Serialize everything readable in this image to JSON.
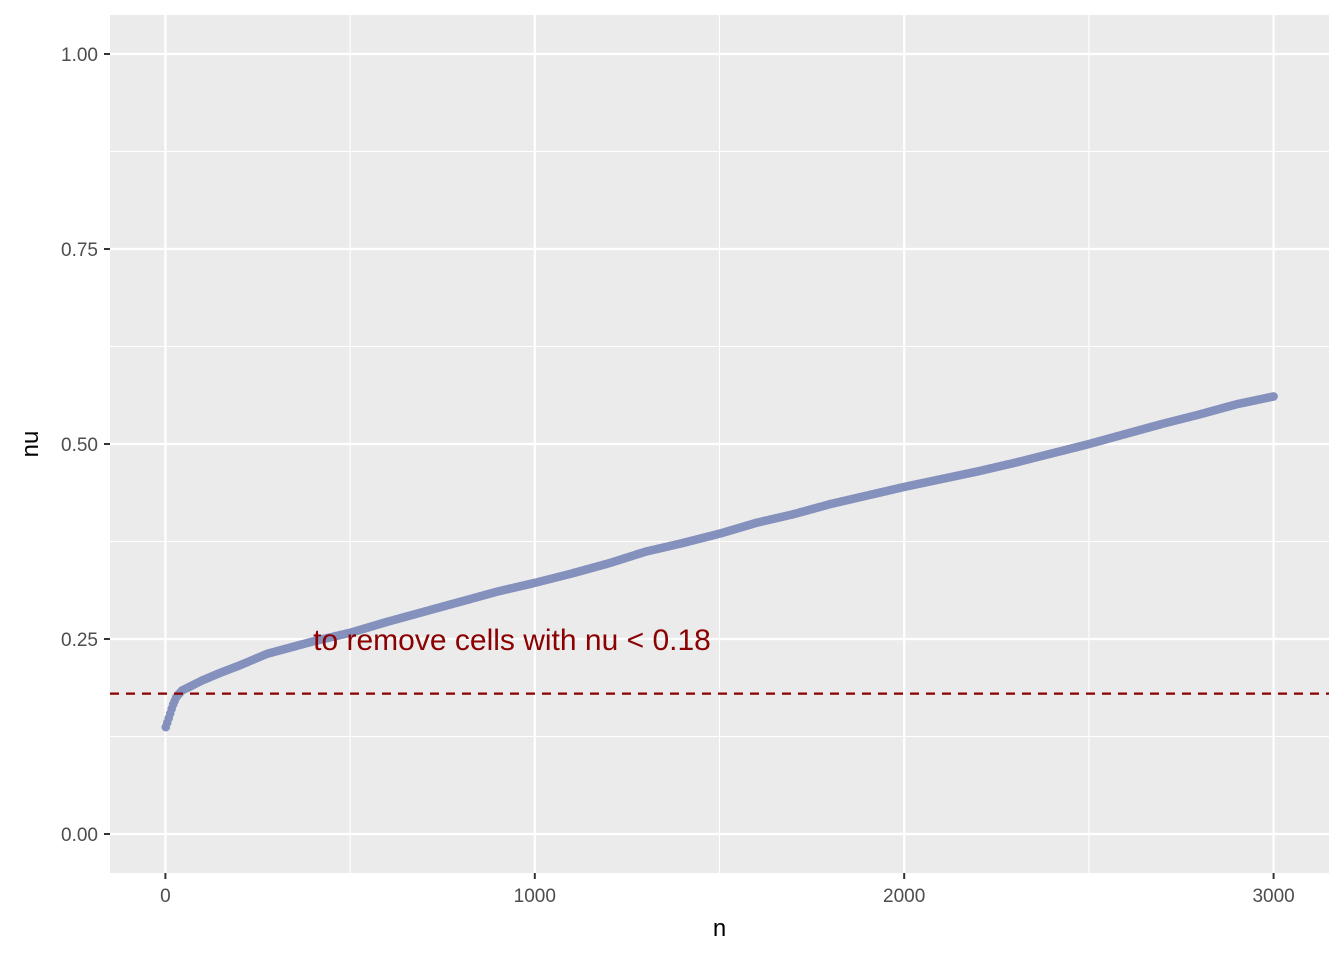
{
  "chart_data": {
    "type": "scatter",
    "title": "",
    "xlabel": "n",
    "ylabel": "nu",
    "xlim": [
      -150,
      3150
    ],
    "ylim": [
      -0.05,
      1.05
    ],
    "x_ticks": [
      0,
      1000,
      2000,
      3000
    ],
    "x_tick_labels": [
      "0",
      "1000",
      "2000",
      "3000"
    ],
    "x_minor_ticks": [
      500,
      1500,
      2500
    ],
    "y_ticks": [
      0,
      0.25,
      0.5,
      0.75,
      1.0
    ],
    "y_tick_labels": [
      "0.00",
      "0.25",
      "0.50",
      "0.75",
      "1.00"
    ],
    "y_minor_ticks": [
      0.125,
      0.375,
      0.625,
      0.875
    ],
    "grid": true,
    "series": [
      {
        "color": "#8591bd",
        "x_range": [
          1,
          3000
        ],
        "curve_points": [
          [
            1,
            0.137
          ],
          [
            10,
            0.15
          ],
          [
            20,
            0.165
          ],
          [
            30,
            0.176
          ],
          [
            45,
            0.184
          ],
          [
            100,
            0.197
          ],
          [
            150,
            0.207
          ],
          [
            200,
            0.216
          ],
          [
            275,
            0.231
          ],
          [
            400,
            0.247
          ],
          [
            500,
            0.258
          ],
          [
            600,
            0.272
          ],
          [
            700,
            0.285
          ],
          [
            800,
            0.298
          ],
          [
            900,
            0.311
          ],
          [
            1000,
            0.322
          ],
          [
            1100,
            0.334
          ],
          [
            1200,
            0.347
          ],
          [
            1300,
            0.362
          ],
          [
            1400,
            0.373
          ],
          [
            1500,
            0.385
          ],
          [
            1600,
            0.399
          ],
          [
            1700,
            0.41
          ],
          [
            1800,
            0.423
          ],
          [
            1900,
            0.434
          ],
          [
            2000,
            0.445
          ],
          [
            2100,
            0.455
          ],
          [
            2200,
            0.465
          ],
          [
            2300,
            0.476
          ],
          [
            2400,
            0.488
          ],
          [
            2500,
            0.5
          ],
          [
            2600,
            0.513
          ],
          [
            2700,
            0.526
          ],
          [
            2800,
            0.538
          ],
          [
            2900,
            0.551
          ],
          [
            3000,
            0.561
          ]
        ]
      }
    ],
    "threshold": {
      "value": 0.18,
      "color": "#8b0000",
      "style": "dashed"
    },
    "annotation": {
      "text": "to remove cells with nu < 0.18",
      "x": 400,
      "y": 0.25,
      "color": "#8b0000"
    }
  }
}
